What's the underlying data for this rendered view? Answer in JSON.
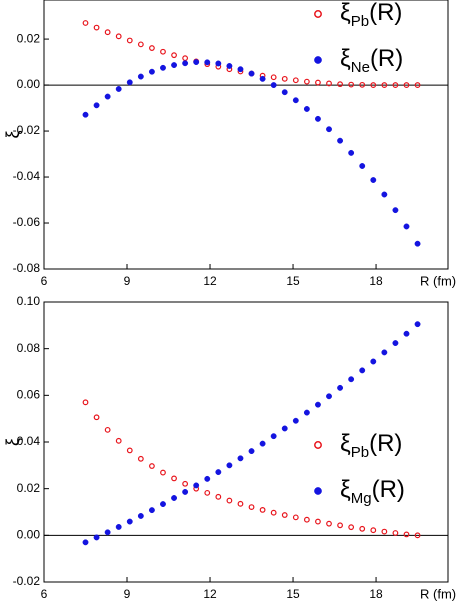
{
  "chart_data": [
    {
      "type": "scatter",
      "x_label": "R (fm)",
      "y_label": "ξ",
      "legend": "upper right",
      "zero_line": true,
      "xlim": [
        6,
        20.6
      ],
      "xticks": [
        6,
        9,
        12,
        15,
        18
      ],
      "ylim": [
        -0.08,
        0.037
      ],
      "yticks": [
        {
          "value": -0.08,
          "label": "-0.08"
        },
        {
          "value": -0.06,
          "label": "-0.06"
        },
        {
          "value": -0.04,
          "label": "-0.04"
        },
        {
          "value": -0.02,
          "label": "-0.02"
        },
        {
          "value": 0,
          "label": "0.00"
        },
        {
          "value": 0.02,
          "label": "0.02"
        }
      ],
      "x": [
        7.5,
        7.9,
        8.3,
        8.7,
        9.1,
        9.5,
        9.9,
        10.3,
        10.7,
        11.1,
        11.5,
        11.9,
        12.3,
        12.7,
        13.1,
        13.5,
        13.9,
        14.3,
        14.7,
        15.1,
        15.5,
        15.9,
        16.3,
        16.7,
        17.1,
        17.5,
        17.9,
        18.3,
        18.7,
        19.1,
        19.5
      ],
      "series": [
        {
          "name": "ξPb(R)",
          "color": "#e8141c",
          "marker": "open",
          "values": [
            0.027,
            0.025,
            0.023,
            0.0212,
            0.0194,
            0.0177,
            0.0161,
            0.0145,
            0.013,
            0.0117,
            0.0103,
            0.0091,
            0.008,
            0.0069,
            0.0059,
            0.005,
            0.0041,
            0.0034,
            0.0027,
            0.0021,
            0.0015,
            0.0011,
            0.0007,
            0.0004,
            0.0002,
            0.0001,
            0,
            0,
            0,
            0,
            0
          ]
        },
        {
          "name": "ξNe(R)",
          "color": "#1414e0",
          "marker": "filled",
          "values": [
            -0.0129,
            -0.0088,
            -0.005,
            -0.0017,
            0.0012,
            0.0037,
            0.0058,
            0.0075,
            0.0087,
            0.0095,
            0.01,
            0.0099,
            0.0094,
            0.0083,
            0.0069,
            0.005,
            0.0027,
            0,
            -0.0031,
            -0.0066,
            -0.0104,
            -0.0147,
            -0.0192,
            -0.0242,
            -0.0295,
            -0.0352,
            -0.0413,
            -0.0476,
            -0.0544,
            -0.0615,
            -0.069
          ]
        }
      ]
    },
    {
      "type": "scatter",
      "x_label": "R (fm)",
      "y_label": "ξ",
      "legend": "center right",
      "zero_line": true,
      "xlim": [
        6,
        20.6
      ],
      "xticks": [
        6,
        9,
        12,
        15,
        18
      ],
      "ylim": [
        -0.02,
        0.1
      ],
      "yticks": [
        {
          "value": -0.02,
          "label": "-0.02"
        },
        {
          "value": 0,
          "label": "0.00"
        },
        {
          "value": 0.02,
          "label": "0.02"
        },
        {
          "value": 0.04,
          "label": "0.04"
        },
        {
          "value": 0.06,
          "label": "0.06"
        },
        {
          "value": 0.08,
          "label": "0.08"
        },
        {
          "value": 0.1,
          "label": "0.10"
        }
      ],
      "x": [
        7.5,
        7.9,
        8.3,
        8.7,
        9.1,
        9.5,
        9.9,
        10.3,
        10.7,
        11.1,
        11.5,
        11.9,
        12.3,
        12.7,
        13.1,
        13.5,
        13.9,
        14.3,
        14.7,
        15.1,
        15.5,
        15.9,
        16.3,
        16.7,
        17.1,
        17.5,
        17.9,
        18.3,
        18.7,
        19.1,
        19.5
      ],
      "series": [
        {
          "name": "ξPb(R)",
          "color": "#e8141c",
          "marker": "open",
          "values": [
            0.057,
            0.0506,
            0.0452,
            0.0405,
            0.0364,
            0.0328,
            0.0297,
            0.0269,
            0.0244,
            0.0221,
            0.02,
            0.0182,
            0.0165,
            0.0149,
            0.0135,
            0.0121,
            0.0109,
            0.0097,
            0.0087,
            0.0077,
            0.0067,
            0.0059,
            0.005,
            0.0043,
            0.0035,
            0.0028,
            0.0022,
            0.0016,
            0.001,
            0.0004,
            0
          ]
        },
        {
          "name": "ξMg(R)",
          "color": "#1414e0",
          "marker": "filled",
          "values": [
            -0.003,
            -0.0009,
            0.0013,
            0.0036,
            0.0059,
            0.0083,
            0.0108,
            0.0134,
            0.016,
            0.0186,
            0.0214,
            0.0242,
            0.0271,
            0.03,
            0.033,
            0.0361,
            0.0393,
            0.0425,
            0.0458,
            0.0491,
            0.0526,
            0.056,
            0.0596,
            0.0632,
            0.0669,
            0.0707,
            0.0745,
            0.0784,
            0.0824,
            0.0864,
            0.0905
          ]
        }
      ]
    }
  ]
}
